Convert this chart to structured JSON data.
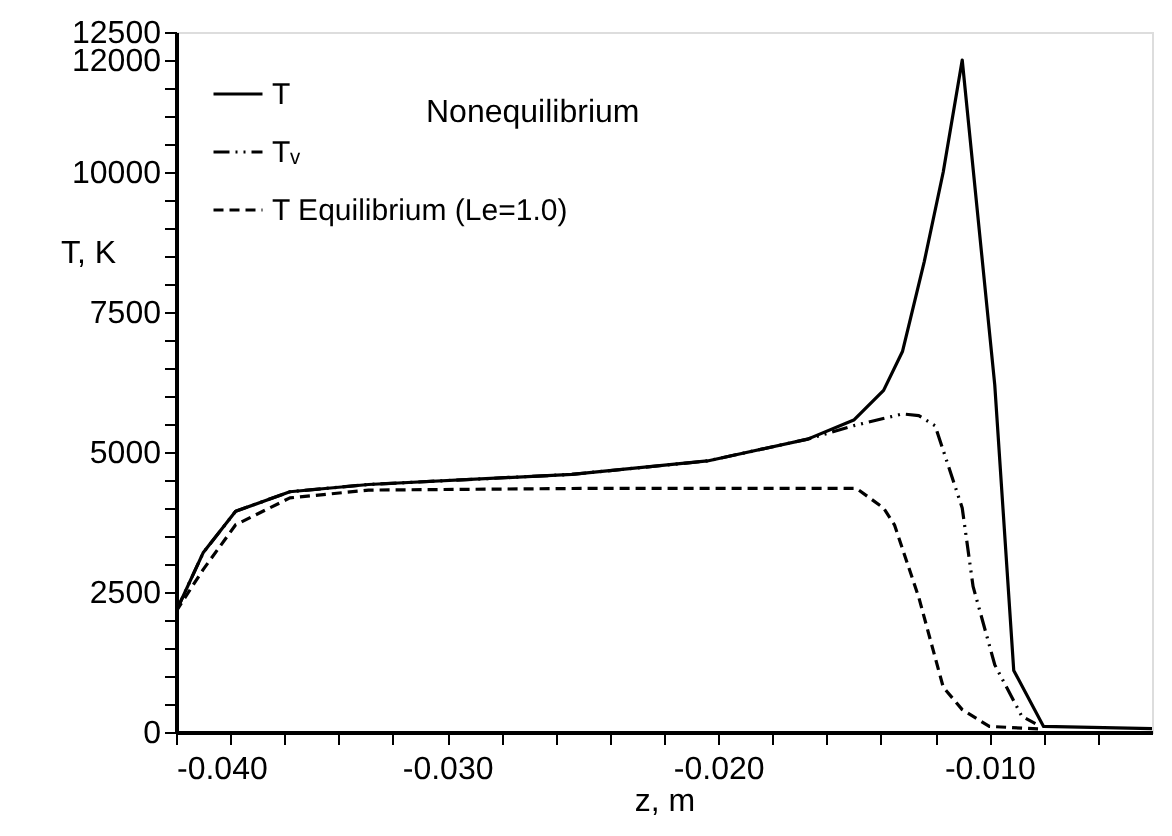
{
  "chart_data": {
    "type": "line",
    "xlabel": "z, m",
    "ylabel": "T, K",
    "xlim": [
      -0.04,
      -0.004
    ],
    "ylim": [
      0,
      12500
    ],
    "xticks": [
      {
        "value": -0.04,
        "label": "-0.040"
      },
      {
        "value": -0.038,
        "label": null
      },
      {
        "value": -0.036,
        "label": null
      },
      {
        "value": -0.034,
        "label": null
      },
      {
        "value": -0.032,
        "label": null
      },
      {
        "value": -0.03,
        "label": "-0.030"
      },
      {
        "value": -0.028,
        "label": null
      },
      {
        "value": -0.026,
        "label": null
      },
      {
        "value": -0.024,
        "label": null
      },
      {
        "value": -0.022,
        "label": null
      },
      {
        "value": -0.02,
        "label": "-0.020"
      },
      {
        "value": -0.018,
        "label": null
      },
      {
        "value": -0.016,
        "label": null
      },
      {
        "value": -0.014,
        "label": null
      },
      {
        "value": -0.012,
        "label": null
      },
      {
        "value": -0.01,
        "label": "-0.010"
      },
      {
        "value": -0.008,
        "label": null
      },
      {
        "value": -0.006,
        "label": null
      }
    ],
    "yticks": [
      0,
      {
        "value": 500,
        "label": null
      },
      {
        "value": 1000,
        "label": null
      },
      {
        "value": 1500,
        "label": null
      },
      {
        "value": 2000,
        "label": null
      },
      2500,
      {
        "value": 3000,
        "label": null
      },
      {
        "value": 3500,
        "label": null
      },
      {
        "value": 4000,
        "label": null
      },
      {
        "value": 4500,
        "label": null
      },
      5000,
      {
        "value": 5500,
        "label": null
      },
      {
        "value": 6000,
        "label": null
      },
      {
        "value": 6500,
        "label": null
      },
      {
        "value": 7000,
        "label": null
      },
      7500,
      {
        "value": 8000,
        "label": null
      },
      {
        "value": 8500,
        "label": null
      },
      {
        "value": 9000,
        "label": null
      },
      {
        "value": 9500,
        "label": null
      },
      10000,
      {
        "value": 10500,
        "label": null
      },
      {
        "value": 11000,
        "label": null
      },
      {
        "value": 11500,
        "label": null
      },
      12000,
      12500
    ],
    "grid": false,
    "legend": "top left",
    "marker": "none",
    "annotations": [
      "Nonequilibrium"
    ],
    "series": [
      {
        "name": "T",
        "color": "#000000",
        "line_style": "solid",
        "x": [
          -0.04,
          -0.039,
          -0.0378,
          -0.0358,
          -0.0329,
          -0.0254,
          -0.0204,
          -0.0167,
          -0.015,
          -0.0139,
          -0.0132,
          -0.0129,
          -0.0124,
          -0.0117,
          -0.011,
          -0.0098,
          -0.0091,
          -0.008,
          -0.004
        ],
        "values": [
          2150,
          3200,
          3940,
          4290,
          4420,
          4600,
          4840,
          5230,
          5570,
          6100,
          6800,
          7400,
          8400,
          10000,
          12000,
          6200,
          1100,
          100,
          60
        ]
      },
      {
        "name": "Tᵥ",
        "color": "#000000",
        "line_style": "dashdot",
        "x": [
          -0.04,
          -0.039,
          -0.0378,
          -0.0358,
          -0.0329,
          -0.0254,
          -0.0204,
          -0.0167,
          -0.015,
          -0.0132,
          -0.0126,
          -0.012,
          -0.011,
          -0.0106,
          -0.0098,
          -0.0088,
          -0.0083
        ],
        "values": [
          2150,
          3200,
          3940,
          4290,
          4420,
          4600,
          4840,
          5230,
          5470,
          5680,
          5650,
          5470,
          4000,
          2600,
          1200,
          280,
          150
        ]
      },
      {
        "name": "T Equilibrium (Le=1.0)",
        "color": "#000000",
        "line_style": "dashed",
        "x": [
          -0.04,
          -0.039,
          -0.0378,
          -0.0358,
          -0.0329,
          -0.025,
          -0.0149,
          -0.0139,
          -0.0135,
          -0.0126,
          -0.0117,
          -0.011,
          -0.01,
          -0.008
        ],
        "values": [
          2150,
          2900,
          3700,
          4180,
          4320,
          4350,
          4350,
          4000,
          3700,
          2400,
          800,
          400,
          100,
          50
        ]
      }
    ]
  }
}
